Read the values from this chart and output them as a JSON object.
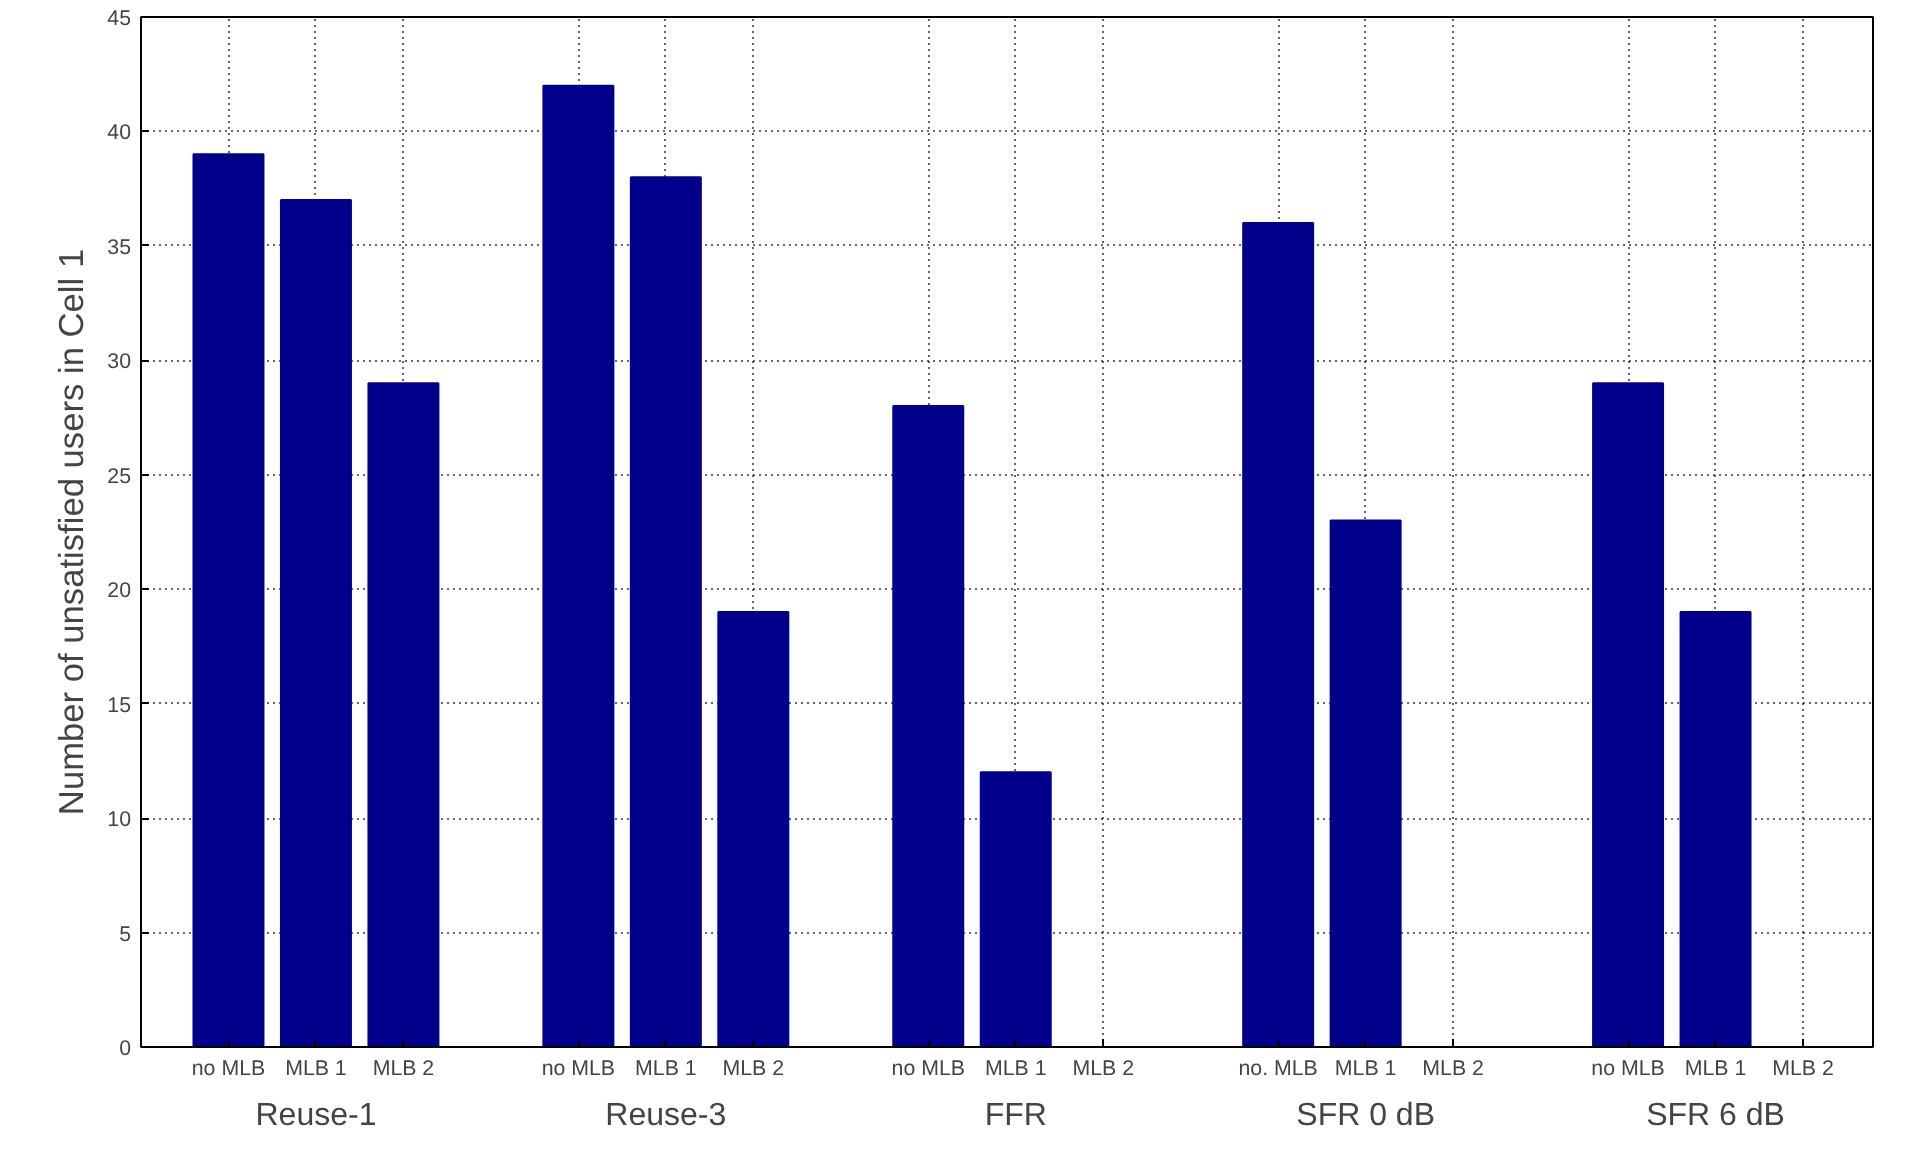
{
  "chart_data": {
    "type": "bar",
    "ylabel": "Number of unsatisfied users in Cell 1",
    "categories": [
      "no MLB",
      "MLB 1",
      "MLB 2",
      null,
      "no MLB",
      "MLB 1",
      "MLB 2",
      null,
      "no MLB",
      "MLB 1",
      "MLB 2",
      null,
      "no. MLB",
      "MLB 1",
      "MLB 2",
      null,
      "no MLB",
      "MLB 1",
      "MLB 2"
    ],
    "values": [
      39,
      37,
      29,
      null,
      42,
      38,
      19,
      null,
      28,
      12,
      0,
      null,
      36,
      23,
      0,
      null,
      29,
      19,
      0
    ],
    "color": "#00008b",
    "annotations": [
      "Reuse-1",
      "Reuse-3",
      "FFR",
      "SFR 0 dB",
      "SFR 6 dB"
    ],
    "ylim": [
      0,
      45
    ],
    "yticks": [
      0,
      5,
      10,
      15,
      20,
      25,
      30,
      35,
      40,
      45
    ],
    "grid": true
  }
}
